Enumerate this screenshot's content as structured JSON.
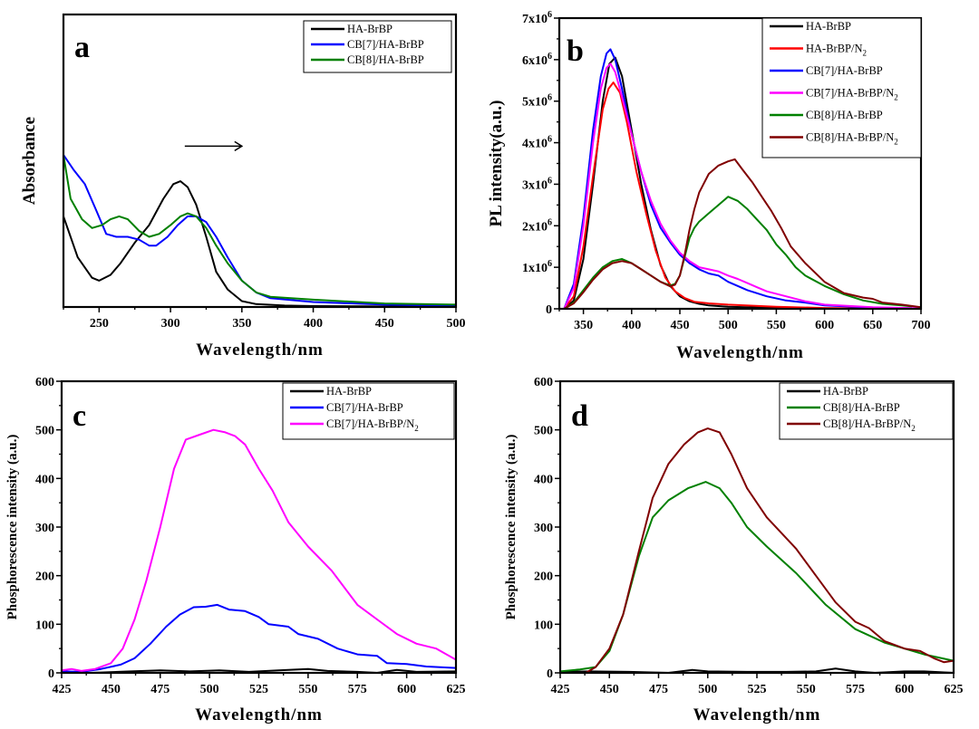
{
  "chart_data": [
    {
      "id": "a",
      "type": "line",
      "panel_label": "a",
      "title": "",
      "xlabel": "Wavelength/nm",
      "ylabel": "Absorbance",
      "xlim": [
        225,
        500
      ],
      "ylim": [
        0,
        1
      ],
      "y_ticks_shown": false,
      "x_ticks": [
        250,
        300,
        350,
        400,
        450,
        500
      ],
      "x_tick_labels": [
        "250",
        "300",
        "350",
        "400",
        "450",
        "500"
      ],
      "grid": false,
      "legend_position": "top-right",
      "annotation": {
        "type": "arrow",
        "direction": "right",
        "x_from": 310,
        "x_to": 350,
        "y": 0.55
      },
      "series": [
        {
          "name": "HA-BrBP",
          "color": "#000000",
          "x": [
            225,
            235,
            245,
            250,
            258,
            265,
            275,
            285,
            295,
            302,
            307,
            312,
            318,
            325,
            332,
            340,
            350,
            360,
            380,
            400,
            450,
            500
          ],
          "y": [
            0.31,
            0.17,
            0.1,
            0.09,
            0.11,
            0.15,
            0.22,
            0.28,
            0.37,
            0.42,
            0.43,
            0.41,
            0.35,
            0.24,
            0.12,
            0.06,
            0.02,
            0.01,
            0.005,
            0.003,
            0.002,
            0.002
          ]
        },
        {
          "name": "CB[7]/HA-BrBP",
          "color": "#0000ff",
          "x": [
            225,
            232,
            240,
            248,
            255,
            262,
            270,
            278,
            285,
            290,
            298,
            305,
            312,
            318,
            325,
            332,
            340,
            350,
            360,
            370,
            400,
            450,
            500
          ],
          "y": [
            0.52,
            0.47,
            0.42,
            0.33,
            0.25,
            0.24,
            0.24,
            0.23,
            0.21,
            0.21,
            0.24,
            0.28,
            0.31,
            0.31,
            0.29,
            0.24,
            0.17,
            0.09,
            0.05,
            0.03,
            0.017,
            0.008,
            0.004
          ]
        },
        {
          "name": "CB[8]/HA-BrBP",
          "color": "#008000",
          "x": [
            225,
            230,
            238,
            245,
            252,
            258,
            264,
            270,
            278,
            285,
            292,
            300,
            307,
            312,
            318,
            325,
            332,
            340,
            350,
            360,
            370,
            400,
            450,
            500
          ],
          "y": [
            0.52,
            0.37,
            0.3,
            0.27,
            0.28,
            0.3,
            0.31,
            0.3,
            0.26,
            0.24,
            0.25,
            0.28,
            0.31,
            0.32,
            0.31,
            0.27,
            0.21,
            0.15,
            0.09,
            0.05,
            0.035,
            0.025,
            0.012,
            0.008
          ]
        }
      ]
    },
    {
      "id": "b",
      "type": "line",
      "panel_label": "b",
      "title": "",
      "xlabel": "Wavelength/nm",
      "ylabel": "PL intensity(a.u.)",
      "xlim": [
        325,
        700
      ],
      "ylim": [
        0,
        7000000
      ],
      "x_ticks": [
        350,
        400,
        450,
        500,
        550,
        600,
        650,
        700
      ],
      "x_tick_labels": [
        "350",
        "400",
        "450",
        "500",
        "550",
        "600",
        "650",
        "700"
      ],
      "y_ticks": [
        0,
        1000000,
        2000000,
        3000000,
        4000000,
        5000000,
        6000000,
        7000000
      ],
      "y_tick_labels": [
        {
          "base": "0",
          "exp": ""
        },
        {
          "base": "1x10",
          "exp": "6"
        },
        {
          "base": "2x10",
          "exp": "6"
        },
        {
          "base": "3x10",
          "exp": "6"
        },
        {
          "base": "4x10",
          "exp": "6"
        },
        {
          "base": "5x10",
          "exp": "6"
        },
        {
          "base": "6x10",
          "exp": "6"
        },
        {
          "base": "7x10",
          "exp": "6"
        }
      ],
      "grid": false,
      "legend_position": "top-right",
      "series": [
        {
          "name": "HA-BrBP",
          "label_main": "HA-BrBP",
          "label_sub": "",
          "color": "#000000",
          "x": [
            330,
            340,
            350,
            360,
            370,
            377,
            383,
            390,
            400,
            410,
            420,
            430,
            440,
            450,
            460,
            470,
            480,
            500,
            550,
            600,
            700
          ],
          "y": [
            0,
            200000,
            1200000,
            3000000,
            5000000,
            5900000,
            6050000,
            5600000,
            4300000,
            3000000,
            1900000,
            1050000,
            550000,
            300000,
            180000,
            120000,
            80000,
            50000,
            20000,
            10000,
            0
          ]
        },
        {
          "name": "HA-BrBP/N2",
          "label_main": "HA-BrBP/N",
          "label_sub": "2",
          "color": "#ff0000",
          "x": [
            330,
            340,
            350,
            360,
            370,
            376,
            381,
            388,
            395,
            405,
            415,
            425,
            435,
            445,
            455,
            465,
            480,
            500,
            550,
            600,
            700
          ],
          "y": [
            0,
            300000,
            1500000,
            3200000,
            4800000,
            5300000,
            5450000,
            5200000,
            4500000,
            3300000,
            2300000,
            1400000,
            750000,
            420000,
            260000,
            170000,
            130000,
            100000,
            50000,
            20000,
            0
          ]
        },
        {
          "name": "CB[7]/HA-BrBP",
          "label_main": "CB[7]/HA-BrBP",
          "label_sub": "",
          "color": "#0000ff",
          "x": [
            330,
            340,
            350,
            360,
            368,
            374,
            378,
            383,
            390,
            400,
            410,
            420,
            430,
            440,
            450,
            460,
            470,
            480,
            490,
            500,
            520,
            540,
            560,
            580,
            600,
            650,
            700
          ],
          "y": [
            0,
            600000,
            2200000,
            4300000,
            5600000,
            6150000,
            6250000,
            6000000,
            5300000,
            4200000,
            3300000,
            2500000,
            1950000,
            1600000,
            1300000,
            1100000,
            950000,
            850000,
            800000,
            650000,
            450000,
            300000,
            200000,
            150000,
            80000,
            30000,
            10000
          ]
        },
        {
          "name": "CB[7]/HA-BrBP/N2",
          "label_main": "CB[7]/HA-BrBP/N",
          "label_sub": "2",
          "color": "#ff00ff",
          "x": [
            330,
            340,
            350,
            360,
            368,
            374,
            378,
            383,
            390,
            400,
            410,
            420,
            430,
            440,
            450,
            460,
            470,
            480,
            490,
            500,
            510,
            520,
            530,
            540,
            560,
            580,
            600,
            650,
            700
          ],
          "y": [
            0,
            500000,
            2000000,
            4000000,
            5300000,
            5800000,
            5900000,
            5700000,
            5100000,
            4200000,
            3300000,
            2600000,
            2050000,
            1650000,
            1350000,
            1150000,
            1000000,
            950000,
            900000,
            800000,
            720000,
            620000,
            520000,
            420000,
            300000,
            180000,
            100000,
            40000,
            10000
          ]
        },
        {
          "name": "CB[8]/HA-BrBP",
          "label_main": "CB[8]/HA-BrBP",
          "label_sub": "",
          "color": "#008000",
          "x": [
            330,
            340,
            350,
            360,
            370,
            380,
            390,
            400,
            410,
            420,
            430,
            440,
            445,
            450,
            455,
            460,
            465,
            470,
            480,
            490,
            500,
            510,
            520,
            530,
            540,
            550,
            560,
            570,
            580,
            600,
            620,
            640,
            660,
            680,
            690
          ],
          "y": [
            0,
            150000,
            450000,
            750000,
            1000000,
            1150000,
            1200000,
            1100000,
            950000,
            800000,
            650000,
            560000,
            600000,
            800000,
            1250000,
            1700000,
            1950000,
            2100000,
            2300000,
            2500000,
            2700000,
            2600000,
            2400000,
            2150000,
            1900000,
            1550000,
            1300000,
            1000000,
            800000,
            550000,
            350000,
            200000,
            120000,
            80000,
            60000
          ]
        },
        {
          "name": "CB[8]/HA-BrBP/N2",
          "label_main": "CB[8]/HA-BrBP/N",
          "label_sub": "2",
          "color": "#800000",
          "x": [
            330,
            340,
            350,
            360,
            370,
            380,
            390,
            400,
            410,
            420,
            430,
            440,
            445,
            450,
            455,
            460,
            465,
            470,
            480,
            490,
            500,
            507,
            515,
            525,
            535,
            545,
            555,
            565,
            580,
            600,
            620,
            640,
            650,
            660,
            680,
            700
          ],
          "y": [
            0,
            130000,
            400000,
            700000,
            950000,
            1100000,
            1150000,
            1100000,
            950000,
            800000,
            650000,
            540000,
            580000,
            800000,
            1300000,
            1900000,
            2400000,
            2800000,
            3250000,
            3450000,
            3550000,
            3600000,
            3350000,
            3050000,
            2700000,
            2350000,
            1950000,
            1500000,
            1100000,
            650000,
            380000,
            270000,
            240000,
            150000,
            100000,
            40000
          ]
        }
      ]
    },
    {
      "id": "c",
      "type": "line",
      "panel_label": "c",
      "title": "",
      "xlabel": "Wavelength/nm",
      "ylabel": "Phosphorescence intensity (a.u.)",
      "xlim": [
        425,
        625
      ],
      "ylim": [
        0,
        600
      ],
      "x_ticks": [
        425,
        450,
        475,
        500,
        525,
        550,
        575,
        600,
        625
      ],
      "x_tick_labels": [
        "425",
        "450",
        "475",
        "500",
        "525",
        "550",
        "575",
        "600",
        "625"
      ],
      "y_ticks": [
        0,
        100,
        200,
        300,
        400,
        500,
        600
      ],
      "y_tick_labels": [
        "0",
        "100",
        "200",
        "300",
        "400",
        "500",
        "600"
      ],
      "grid": false,
      "legend_position": "top-right",
      "series": [
        {
          "name": "HA-BrBP",
          "label_main": "HA-BrBP",
          "label_sub": "",
          "color": "#000000",
          "x": [
            425,
            440,
            460,
            475,
            490,
            505,
            520,
            535,
            550,
            560,
            575,
            585,
            595,
            605,
            625
          ],
          "y": [
            0,
            0,
            3,
            5,
            3,
            5,
            2,
            5,
            8,
            4,
            2,
            0,
            6,
            2,
            3
          ]
        },
        {
          "name": "CB[7]/HA-BrBP",
          "label_main": "CB[7]/HA-BrBP",
          "label_sub": "",
          "color": "#0000ff",
          "x": [
            425,
            435,
            445,
            455,
            462,
            470,
            478,
            485,
            492,
            498,
            504,
            510,
            518,
            525,
            530,
            540,
            545,
            555,
            565,
            575,
            585,
            590,
            600,
            610,
            625
          ],
          "y": [
            3,
            2,
            8,
            17,
            30,
            60,
            95,
            120,
            135,
            136,
            140,
            130,
            127,
            115,
            100,
            95,
            80,
            70,
            50,
            38,
            35,
            20,
            18,
            13,
            10
          ]
        },
        {
          "name": "CB[7]/HA-BrBP/N2",
          "label_main": "CB[7]/HA-BrBP/N",
          "label_sub": "2",
          "color": "#ff00ff",
          "x": [
            425,
            430,
            435,
            442,
            450,
            456,
            462,
            468,
            475,
            482,
            488,
            495,
            502,
            508,
            513,
            518,
            525,
            532,
            540,
            550,
            562,
            575,
            585,
            595,
            605,
            615,
            625
          ],
          "y": [
            5,
            8,
            4,
            8,
            20,
            50,
            110,
            190,
            300,
            420,
            480,
            490,
            500,
            495,
            487,
            470,
            420,
            375,
            310,
            260,
            210,
            140,
            110,
            80,
            60,
            50,
            27
          ]
        }
      ]
    },
    {
      "id": "d",
      "type": "line",
      "panel_label": "d",
      "title": "",
      "xlabel": "Wavelength/nm",
      "ylabel": "Phosphorescence intensity (a.u.)",
      "xlim": [
        425,
        625
      ],
      "ylim": [
        0,
        600
      ],
      "x_ticks": [
        425,
        450,
        475,
        500,
        525,
        550,
        575,
        600,
        625
      ],
      "x_tick_labels": [
        "425",
        "450",
        "475",
        "500",
        "525",
        "550",
        "575",
        "600",
        "625"
      ],
      "y_ticks": [
        0,
        100,
        200,
        300,
        400,
        500,
        600
      ],
      "y_tick_labels": [
        "0",
        "100",
        "200",
        "300",
        "400",
        "500",
        "600"
      ],
      "grid": false,
      "legend_position": "top-right",
      "series": [
        {
          "name": "HA-BrBP",
          "label_main": "HA-BrBP",
          "label_sub": "",
          "color": "#000000",
          "x": [
            425,
            440,
            460,
            480,
            492,
            500,
            520,
            540,
            555,
            565,
            575,
            585,
            600,
            610,
            625
          ],
          "y": [
            2,
            3,
            2,
            0,
            6,
            3,
            2,
            2,
            3,
            9,
            3,
            0,
            3,
            3,
            0
          ]
        },
        {
          "name": "CB[8]/HA-BrBP",
          "label_main": "CB[8]/HA-BrBP",
          "label_sub": "",
          "color": "#008000",
          "x": [
            425,
            435,
            443,
            450,
            457,
            465,
            472,
            480,
            490,
            499,
            506,
            512,
            520,
            530,
            545,
            560,
            575,
            590,
            600,
            610,
            625
          ],
          "y": [
            3,
            7,
            12,
            45,
            120,
            240,
            320,
            355,
            380,
            393,
            380,
            350,
            300,
            260,
            205,
            140,
            90,
            62,
            50,
            38,
            25
          ]
        },
        {
          "name": "CB[8]/HA-BrBP/N2",
          "label_main": "CB[8]/HA-BrBP/N",
          "label_sub": "2",
          "color": "#800000",
          "x": [
            438,
            443,
            450,
            457,
            465,
            472,
            480,
            488,
            495,
            500,
            506,
            512,
            520,
            530,
            545,
            555,
            565,
            575,
            582,
            590,
            600,
            608,
            615,
            620,
            625
          ],
          "y": [
            0,
            12,
            50,
            120,
            250,
            360,
            430,
            470,
            495,
            503,
            495,
            450,
            380,
            320,
            255,
            200,
            145,
            105,
            92,
            65,
            50,
            45,
            30,
            22,
            25
          ]
        }
      ]
    }
  ]
}
